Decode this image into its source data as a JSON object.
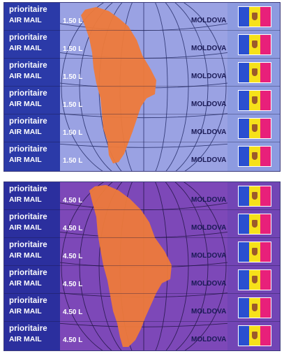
{
  "sheets": [
    {
      "rows": [
        {
          "line1": "prioritaire",
          "line2": "AIR MAIL",
          "value": "1.50 L",
          "country": "MOLDOVA"
        },
        {
          "line1": "prioritaire",
          "line2": "AIR MAIL",
          "value": "1.50 L",
          "country": "MOLDOVA"
        },
        {
          "line1": "prioritaire",
          "line2": "AIR MAIL",
          "value": "1.50 L",
          "country": "MOLDOVA"
        },
        {
          "line1": "prioritaire",
          "line2": "AIR MAIL",
          "value": "1.50 L",
          "country": "MOLDOVA"
        },
        {
          "line1": "prioritaire",
          "line2": "AIR MAIL",
          "value": "1.50 L",
          "country": "MOLDOVA"
        },
        {
          "line1": "prioritaire",
          "line2": "AIR MAIL",
          "value": "1.50 L",
          "country": "MOLDOVA"
        }
      ]
    },
    {
      "rows": [
        {
          "line1": "prioritaire",
          "line2": "AIR MAIL",
          "value": "4.50 L",
          "country": "MOLDOVA"
        },
        {
          "line1": "prioritaire",
          "line2": "AIR MAIL",
          "value": "4.50 L",
          "country": "MOLDOVA"
        },
        {
          "line1": "prioritaire",
          "line2": "AIR MAIL",
          "value": "4.50 L",
          "country": "MOLDOVA"
        },
        {
          "line1": "prioritaire",
          "line2": "AIR MAIL",
          "value": "4.50 L",
          "country": "MOLDOVA"
        },
        {
          "line1": "prioritaire",
          "line2": "AIR MAIL",
          "value": "4.50 L",
          "country": "MOLDOVA"
        },
        {
          "line1": "prioritaire",
          "line2": "AIR MAIL",
          "value": "4.50 L",
          "country": "MOLDOVA"
        }
      ]
    }
  ],
  "colors": {
    "map": "#ee7a3a",
    "flag_blue": "#2a4fd0",
    "flag_yellow": "#f6e11a",
    "flag_red": "#e8207a"
  },
  "icons": [
    "moldova-map-shape",
    "moldova-flag-icon",
    "globe-meridian-lines"
  ]
}
